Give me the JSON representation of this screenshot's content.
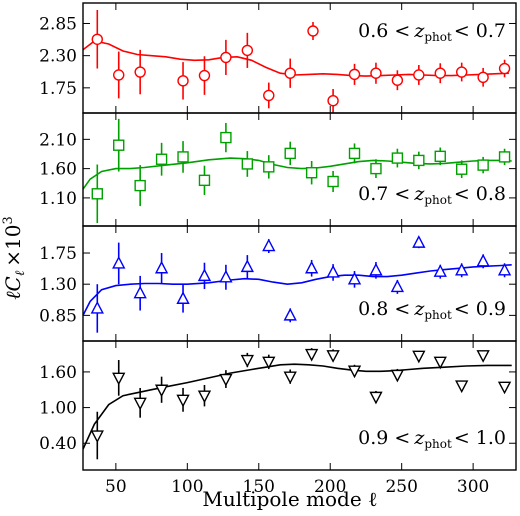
{
  "figure": {
    "xlabel": "Multipole mode ℓ",
    "ylabel_base": "ℓC",
    "ylabel_sub": "ℓ",
    "ylabel_scale": "×10",
    "ylabel_exp": "3"
  },
  "chart_data": {
    "type": "scatter",
    "title": "",
    "xlabel": "Multipole mode ℓ",
    "ylabel": "ℓCℓ ×10³",
    "xlim": [
      27,
      330
    ],
    "xticks": [
      50,
      100,
      150,
      200,
      250,
      300
    ],
    "shared_x": [
      37,
      52,
      67,
      82,
      97,
      112,
      127,
      142,
      157,
      172,
      187,
      202,
      217,
      232,
      247,
      262,
      277,
      292,
      307,
      322
    ],
    "panels": [
      {
        "label": "0.6 < z_phot < 0.7",
        "label_pre": "0.6 <",
        "label_z": "z",
        "label_sub": "phot",
        "label_post": "< 0.7",
        "color": "#ff0000",
        "marker": "circle",
        "ylim": [
          1.32,
          3.2
        ],
        "yticks": [
          1.75,
          2.3,
          2.85
        ],
        "ytick_labels": [
          "1.75",
          "2.30",
          "2.85"
        ],
        "label_pos": "top-right",
        "points": [
          {
            "x": 37,
            "y": 2.58,
            "err": 0.5
          },
          {
            "x": 52,
            "y": 1.97,
            "err": 0.4
          },
          {
            "x": 67,
            "y": 2.02,
            "err": 0.38
          },
          {
            "x": 97,
            "y": 1.87,
            "err": 0.32
          },
          {
            "x": 112,
            "y": 1.96,
            "err": 0.33
          },
          {
            "x": 127,
            "y": 2.27,
            "err": 0.3
          },
          {
            "x": 142,
            "y": 2.39,
            "err": 0.3
          },
          {
            "x": 157,
            "y": 1.62,
            "err": 0.22
          },
          {
            "x": 172,
            "y": 2.0,
            "err": 0.25
          },
          {
            "x": 202,
            "y": 1.53,
            "err": 0.2
          },
          {
            "x": 217,
            "y": 1.98,
            "err": 0.18
          },
          {
            "x": 232,
            "y": 2.0,
            "err": 0.18
          },
          {
            "x": 247,
            "y": 1.88,
            "err": 0.17
          },
          {
            "x": 262,
            "y": 1.97,
            "err": 0.17
          },
          {
            "x": 277,
            "y": 2.0,
            "err": 0.17
          },
          {
            "x": 292,
            "y": 2.02,
            "err": 0.16
          },
          {
            "x": 307,
            "y": 1.93,
            "err": 0.16
          },
          {
            "x": 322,
            "y": 2.08,
            "err": 0.15
          }
        ],
        "model": [
          [
            27,
            2.4
          ],
          [
            35,
            2.55
          ],
          [
            45,
            2.5
          ],
          [
            55,
            2.38
          ],
          [
            65,
            2.32
          ],
          [
            75,
            2.3
          ],
          [
            85,
            2.28
          ],
          [
            95,
            2.24
          ],
          [
            105,
            2.22
          ],
          [
            115,
            2.23
          ],
          [
            125,
            2.27
          ],
          [
            135,
            2.28
          ],
          [
            145,
            2.22
          ],
          [
            155,
            2.1
          ],
          [
            165,
            2.0
          ],
          [
            175,
            1.97
          ],
          [
            185,
            1.98
          ],
          [
            195,
            1.99
          ],
          [
            205,
            1.98
          ],
          [
            215,
            1.96
          ],
          [
            225,
            1.95
          ],
          [
            235,
            1.96
          ],
          [
            245,
            1.97
          ],
          [
            255,
            1.98
          ],
          [
            265,
            1.97
          ],
          [
            275,
            1.96
          ],
          [
            285,
            1.96
          ],
          [
            295,
            1.97
          ],
          [
            305,
            1.98
          ],
          [
            315,
            1.99
          ],
          [
            325,
            2.0
          ]
        ]
      },
      {
        "label": "0.7 < z_phot < 0.8",
        "label_pre": "0.7 <",
        "label_z": "z",
        "label_sub": "phot",
        "label_post": "< 0.8",
        "color": "#00a000",
        "marker": "square",
        "ylim": [
          0.62,
          2.55
        ],
        "yticks": [
          1.1,
          1.6,
          2.1
        ],
        "ytick_labels": [
          "1.10",
          "1.60",
          "2.10"
        ],
        "label_pos": "bottom-right",
        "points": [
          {
            "x": 37,
            "y": 1.17,
            "err": 0.5
          },
          {
            "x": 52,
            "y": 2.0,
            "err": 0.45
          },
          {
            "x": 67,
            "y": 1.31,
            "err": 0.35
          },
          {
            "x": 82,
            "y": 1.76,
            "err": 0.28
          },
          {
            "x": 97,
            "y": 1.8,
            "err": 0.27
          },
          {
            "x": 112,
            "y": 1.4,
            "err": 0.25
          },
          {
            "x": 127,
            "y": 2.13,
            "err": 0.25
          },
          {
            "x": 142,
            "y": 1.68,
            "err": 0.22
          },
          {
            "x": 157,
            "y": 1.63,
            "err": 0.2
          },
          {
            "x": 172,
            "y": 1.86,
            "err": 0.2
          },
          {
            "x": 187,
            "y": 1.53,
            "err": 0.2
          },
          {
            "x": 202,
            "y": 1.38,
            "err": 0.18
          },
          {
            "x": 217,
            "y": 1.86,
            "err": 0.17
          },
          {
            "x": 232,
            "y": 1.6,
            "err": 0.16
          },
          {
            "x": 247,
            "y": 1.78,
            "err": 0.16
          },
          {
            "x": 262,
            "y": 1.74,
            "err": 0.15
          },
          {
            "x": 277,
            "y": 1.81,
            "err": 0.15
          },
          {
            "x": 292,
            "y": 1.59,
            "err": 0.15
          },
          {
            "x": 307,
            "y": 1.66,
            "err": 0.14
          },
          {
            "x": 322,
            "y": 1.8,
            "err": 0.14
          }
        ],
        "model": [
          [
            27,
            1.25
          ],
          [
            32,
            1.42
          ],
          [
            40,
            1.55
          ],
          [
            50,
            1.6
          ],
          [
            60,
            1.6
          ],
          [
            70,
            1.62
          ],
          [
            85,
            1.66
          ],
          [
            100,
            1.7
          ],
          [
            115,
            1.75
          ],
          [
            130,
            1.78
          ],
          [
            140,
            1.77
          ],
          [
            150,
            1.74
          ],
          [
            160,
            1.67
          ],
          [
            170,
            1.62
          ],
          [
            180,
            1.6
          ],
          [
            190,
            1.61
          ],
          [
            200,
            1.64
          ],
          [
            210,
            1.68
          ],
          [
            220,
            1.72
          ],
          [
            230,
            1.74
          ],
          [
            240,
            1.73
          ],
          [
            250,
            1.71
          ],
          [
            260,
            1.69
          ],
          [
            270,
            1.68
          ],
          [
            280,
            1.69
          ],
          [
            290,
            1.71
          ],
          [
            300,
            1.73
          ],
          [
            310,
            1.74
          ],
          [
            320,
            1.74
          ],
          [
            327,
            1.73
          ]
        ]
      },
      {
        "label": "0.8 < z_phot < 0.9",
        "label_pre": "0.8 <",
        "label_z": "z",
        "label_sub": "phot",
        "label_post": "< 0.9",
        "color": "#0000ff",
        "marker": "triangle-up",
        "ylim": [
          0.48,
          2.14
        ],
        "yticks": [
          0.85,
          1.3,
          1.75
        ],
        "ytick_labels": [
          "0.85",
          "1.30",
          "1.75"
        ],
        "label_pos": "bottom-right",
        "points": [
          {
            "x": 37,
            "y": 0.95,
            "err": 0.35
          },
          {
            "x": 52,
            "y": 1.6,
            "err": 0.3
          },
          {
            "x": 67,
            "y": 1.17,
            "err": 0.25
          },
          {
            "x": 82,
            "y": 1.53,
            "err": 0.22
          },
          {
            "x": 97,
            "y": 1.09,
            "err": 0.2
          },
          {
            "x": 112,
            "y": 1.42,
            "err": 0.19
          },
          {
            "x": 127,
            "y": 1.4,
            "err": 0.18
          },
          {
            "x": 142,
            "y": 1.55,
            "err": 0.17
          },
          {
            "x": 157,
            "y": 1.85,
            "err": 0.1
          },
          {
            "x": 172,
            "y": 0.85,
            "err": 0.1
          },
          {
            "x": 187,
            "y": 1.53,
            "err": 0.12
          },
          {
            "x": 202,
            "y": 1.47,
            "err": 0.12
          },
          {
            "x": 217,
            "y": 1.37,
            "err": 0.12
          },
          {
            "x": 232,
            "y": 1.5,
            "err": 0.12
          },
          {
            "x": 247,
            "y": 1.26,
            "err": 0.1
          },
          {
            "x": 262,
            "y": 1.9,
            "err": 0.08
          },
          {
            "x": 277,
            "y": 1.48,
            "err": 0.1
          },
          {
            "x": 292,
            "y": 1.5,
            "err": 0.1
          },
          {
            "x": 307,
            "y": 1.63,
            "err": 0.1
          },
          {
            "x": 322,
            "y": 1.5,
            "err": 0.1
          }
        ],
        "model": [
          [
            27,
            0.85
          ],
          [
            32,
            1.05
          ],
          [
            40,
            1.22
          ],
          [
            50,
            1.28
          ],
          [
            60,
            1.3
          ],
          [
            70,
            1.31
          ],
          [
            80,
            1.31
          ],
          [
            90,
            1.3
          ],
          [
            100,
            1.3
          ],
          [
            115,
            1.32
          ],
          [
            130,
            1.36
          ],
          [
            140,
            1.38
          ],
          [
            150,
            1.37
          ],
          [
            160,
            1.33
          ],
          [
            170,
            1.3
          ],
          [
            180,
            1.32
          ],
          [
            190,
            1.37
          ],
          [
            200,
            1.41
          ],
          [
            210,
            1.43
          ],
          [
            220,
            1.43
          ],
          [
            230,
            1.41
          ],
          [
            240,
            1.41
          ],
          [
            250,
            1.43
          ],
          [
            260,
            1.46
          ],
          [
            270,
            1.49
          ],
          [
            280,
            1.51
          ],
          [
            290,
            1.53
          ],
          [
            300,
            1.55
          ],
          [
            310,
            1.56
          ],
          [
            320,
            1.57
          ],
          [
            327,
            1.58
          ]
        ]
      },
      {
        "label": "0.9 < z_phot < 1.0",
        "label_pre": "0.9 <",
        "label_z": "z",
        "label_sub": "phot",
        "label_post": "< 1.0",
        "color": "#000000",
        "marker": "triangle-down",
        "ylim": [
          -0.05,
          2.12
        ],
        "yticks": [
          0.4,
          1.0,
          1.6
        ],
        "ytick_labels": [
          "0.40",
          "1.00",
          "1.60"
        ],
        "label_pos": "bottom-right",
        "points": [
          {
            "x": 37,
            "y": 0.53,
            "err": 0.4
          },
          {
            "x": 52,
            "y": 1.5,
            "err": 0.3
          },
          {
            "x": 67,
            "y": 1.08,
            "err": 0.25
          },
          {
            "x": 82,
            "y": 1.3,
            "err": 0.22
          },
          {
            "x": 97,
            "y": 1.13,
            "err": 0.2
          },
          {
            "x": 112,
            "y": 1.2,
            "err": 0.18
          },
          {
            "x": 127,
            "y": 1.48,
            "err": 0.15
          },
          {
            "x": 142,
            "y": 1.8,
            "err": 0.12
          },
          {
            "x": 157,
            "y": 1.77,
            "err": 0.12
          },
          {
            "x": 172,
            "y": 1.52,
            "err": 0.12
          },
          {
            "x": 187,
            "y": 1.9,
            "err": 0.1
          },
          {
            "x": 202,
            "y": 1.88,
            "err": 0.1
          },
          {
            "x": 217,
            "y": 1.62,
            "err": 0.1
          },
          {
            "x": 232,
            "y": 1.18,
            "err": 0.1
          },
          {
            "x": 247,
            "y": 1.55,
            "err": 0.1
          },
          {
            "x": 262,
            "y": 1.87,
            "err": 0.08
          },
          {
            "x": 277,
            "y": 1.77,
            "err": 0.08
          },
          {
            "x": 292,
            "y": 1.37,
            "err": 0.08
          },
          {
            "x": 307,
            "y": 1.88,
            "err": 0.08
          },
          {
            "x": 322,
            "y": 1.35,
            "err": 0.08
          }
        ],
        "model": [
          [
            27,
            0.3
          ],
          [
            35,
            0.72
          ],
          [
            45,
            1.05
          ],
          [
            55,
            1.2
          ],
          [
            65,
            1.25
          ],
          [
            75,
            1.3
          ],
          [
            85,
            1.35
          ],
          [
            100,
            1.42
          ],
          [
            115,
            1.5
          ],
          [
            130,
            1.58
          ],
          [
            145,
            1.64
          ],
          [
            155,
            1.68
          ],
          [
            165,
            1.72
          ],
          [
            175,
            1.73
          ],
          [
            185,
            1.72
          ],
          [
            195,
            1.7
          ],
          [
            205,
            1.66
          ],
          [
            215,
            1.63
          ],
          [
            225,
            1.61
          ],
          [
            235,
            1.61
          ],
          [
            245,
            1.62
          ],
          [
            255,
            1.64
          ],
          [
            265,
            1.66
          ],
          [
            280,
            1.68
          ],
          [
            295,
            1.7
          ],
          [
            310,
            1.71
          ],
          [
            327,
            1.71
          ]
        ]
      }
    ]
  }
}
